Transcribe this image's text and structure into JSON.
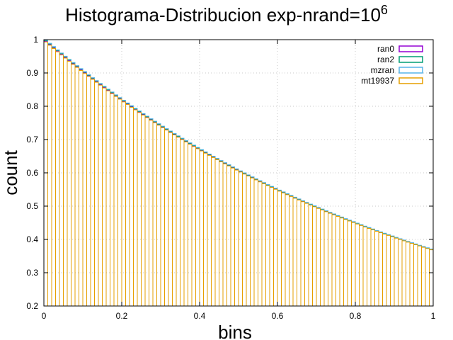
{
  "chart_data": {
    "type": "bar",
    "title": "Histograma-Distribucion exp-nrand=10",
    "title_superscript": "6",
    "xlabel": "bins",
    "ylabel": "count",
    "xlim": [
      0,
      1
    ],
    "ylim": [
      0.2,
      1
    ],
    "xticks": [
      "0",
      "0.2",
      "0.4",
      "0.6",
      "0.8",
      "1"
    ],
    "yticks": [
      "0.2",
      "0.3",
      "0.4",
      "0.5",
      "0.6",
      "0.7",
      "0.8",
      "0.9",
      "1"
    ],
    "grid": true,
    "legend_position": "top-right",
    "distribution": "exp(-x)",
    "bin_count": 100,
    "bin_width": 0.01,
    "series": [
      {
        "name": "ran0",
        "color": "#9400d3",
        "scale": 1.0
      },
      {
        "name": "ran2",
        "color": "#009e73",
        "scale": 1.002
      },
      {
        "name": "mzran",
        "color": "#56b4e9",
        "scale": 1.004
      },
      {
        "name": "mt19937",
        "color": "#e69f00",
        "scale": 0.998
      }
    ]
  }
}
